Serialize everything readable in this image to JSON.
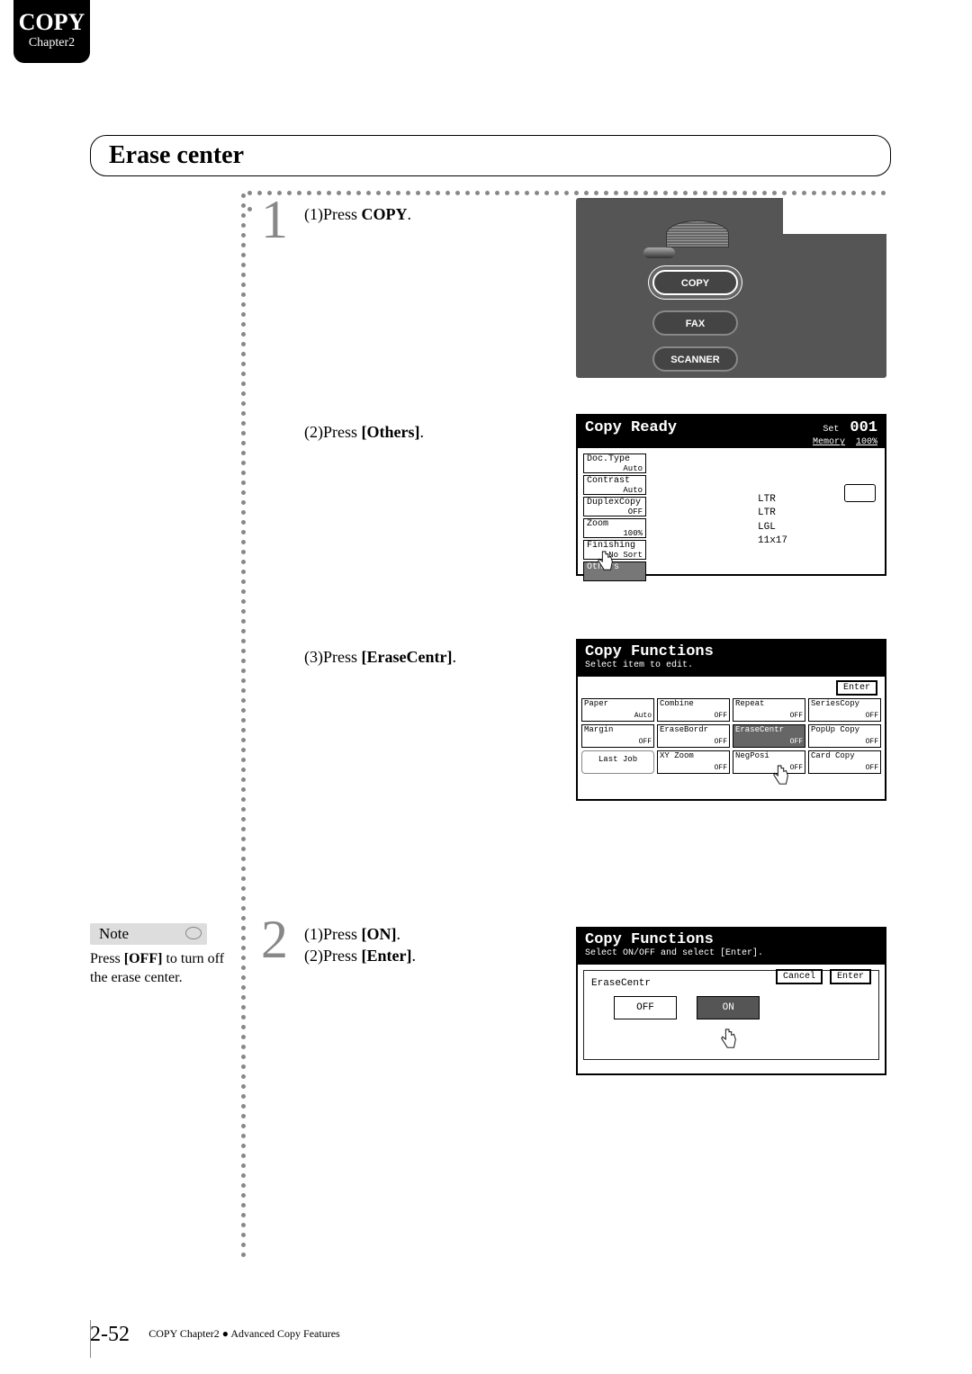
{
  "tab": {
    "title": "COPY",
    "subtitle": "Chapter2"
  },
  "heading": "Erase center",
  "steps": {
    "s1": {
      "num": "1",
      "a": "(1)Press",
      "a_bold": "COPY",
      "b": "(2)Press",
      "b_bold": "[Others]",
      "c": "(3)Press",
      "c_bold": "[EraseCentr]"
    },
    "s2": {
      "num": "2",
      "a": "(1)Press",
      "a_bold": "[ON]",
      "b": "(2)Press",
      "b_bold": "[Enter]"
    }
  },
  "note": {
    "label": "Note",
    "text_a": "Press ",
    "text_bold": "[OFF]",
    "text_b": " to turn off the erase center."
  },
  "panel": {
    "copy": "COPY",
    "fax": "FAX",
    "scanner": "SCANNER"
  },
  "lcd_ready": {
    "title": "Copy Ready",
    "set": "Set",
    "count": "001",
    "mem": "Memory",
    "mempc": "100%",
    "btns": [
      {
        "l": "Doc.Type",
        "v": "Auto"
      },
      {
        "l": "Contrast",
        "v": "Auto"
      },
      {
        "l": "DuplexCopy",
        "v": "OFF"
      },
      {
        "l": "Zoom",
        "v": "100%"
      },
      {
        "l": "Finishing",
        "v": "No Sort"
      },
      {
        "l": "Others",
        "v": ""
      }
    ],
    "sizes": [
      "LTR",
      "LTR",
      "LGL",
      "11x17"
    ]
  },
  "lcd_f1": {
    "title": "Copy Functions",
    "sub": "Select item to edit.",
    "enter": "Enter",
    "row1": [
      {
        "l": "Paper",
        "v": "Auto"
      },
      {
        "l": "Combine",
        "v": "OFF"
      },
      {
        "l": "Repeat",
        "v": "OFF"
      },
      {
        "l": "SeriesCopy",
        "v": "OFF"
      }
    ],
    "row2": [
      {
        "l": "Margin",
        "v": "OFF"
      },
      {
        "l": "EraseBordr",
        "v": "OFF"
      },
      {
        "l": "EraseCentr",
        "v": "OFF",
        "sel": true
      },
      {
        "l": "PopUp Copy",
        "v": "OFF"
      }
    ],
    "row3": [
      {
        "l": "Last Job",
        "v": "",
        "lj": true
      },
      {
        "l": "XY Zoom",
        "v": "OFF"
      },
      {
        "l": "NegPosi",
        "v": "OFF"
      },
      {
        "l": "Card Copy",
        "v": "OFF"
      }
    ]
  },
  "lcd_f2": {
    "title": "Copy Functions",
    "sub": "Select ON/OFF and select [Enter].",
    "label": "EraseCentr",
    "off": "OFF",
    "on": "ON",
    "cancel": "Cancel",
    "enter": "Enter"
  },
  "footer": {
    "page": "2-52",
    "text": "COPY Chapter2 ● Advanced Copy Features"
  },
  "colors": {
    "tab_bg": "#000000",
    "dot": "#888888",
    "stepnum": "#888888",
    "panel": "#555555"
  }
}
